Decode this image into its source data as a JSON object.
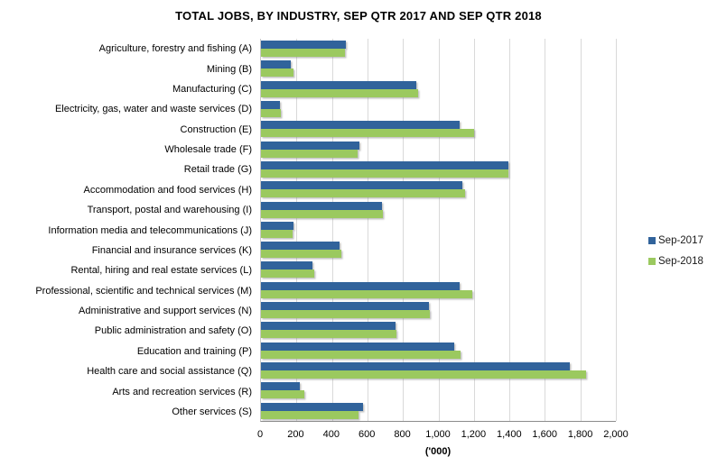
{
  "title": "TOTAL JOBS, BY INDUSTRY, SEP QTR 2017 AND SEP QTR 2018",
  "colors": {
    "series1": "#31639B",
    "series2": "#9BC95F",
    "gridline": "#D9D9D9",
    "axis_line": "#8C8C8C"
  },
  "legend": {
    "position": "right",
    "items": [
      {
        "label": "Sep-2017",
        "color": "#31639B"
      },
      {
        "label": "Sep-2018",
        "color": "#9BC95F"
      }
    ]
  },
  "x_axis": {
    "label": "('000)",
    "tick_values": [
      0,
      200,
      400,
      600,
      800,
      1000,
      1200,
      1400,
      1600,
      1800,
      2000
    ],
    "tick_labels": [
      "0",
      "200",
      "400",
      "600",
      "800",
      "1,000",
      "1,200",
      "1,400",
      "1,600",
      "1,800",
      "2,000"
    ],
    "max": 2000
  },
  "chart_data": {
    "type": "bar",
    "orientation": "horizontal",
    "title": "TOTAL JOBS, BY INDUSTRY, SEP QTR 2017 AND SEP QTR 2018",
    "xlabel": "('000)",
    "xlim": [
      0,
      2000
    ],
    "grid": true,
    "legend_position": "right",
    "categories": [
      "Agriculture, forestry and fishing (A)",
      "Mining (B)",
      "Manufacturing (C)",
      "Electricity, gas, water and waste services (D)",
      "Construction (E)",
      "Wholesale trade (F)",
      "Retail trade (G)",
      "Accommodation and food services (H)",
      "Transport, postal and warehousing (I)",
      "Information media and telecommunications (J)",
      "Financial and insurance services (K)",
      "Rental, hiring and real estate services (L)",
      "Professional, scientific and technical services (M)",
      "Administrative and support services (N)",
      "Public administration and safety (O)",
      "Education and training (P)",
      "Health care and social assistance (Q)",
      "Arts and recreation services (R)",
      "Other services (S)"
    ],
    "series": [
      {
        "name": "Sep-2017",
        "color": "#31639B",
        "values": [
          480,
          170,
          875,
          105,
          1120,
          555,
          1395,
          1135,
          680,
          185,
          445,
          290,
          1120,
          945,
          760,
          1090,
          1740,
          220,
          575
        ]
      },
      {
        "name": "Sep-2018",
        "color": "#9BC95F",
        "values": [
          475,
          185,
          885,
          110,
          1200,
          545,
          1395,
          1150,
          685,
          180,
          455,
          300,
          1190,
          950,
          765,
          1125,
          1830,
          245,
          550
        ]
      }
    ]
  }
}
